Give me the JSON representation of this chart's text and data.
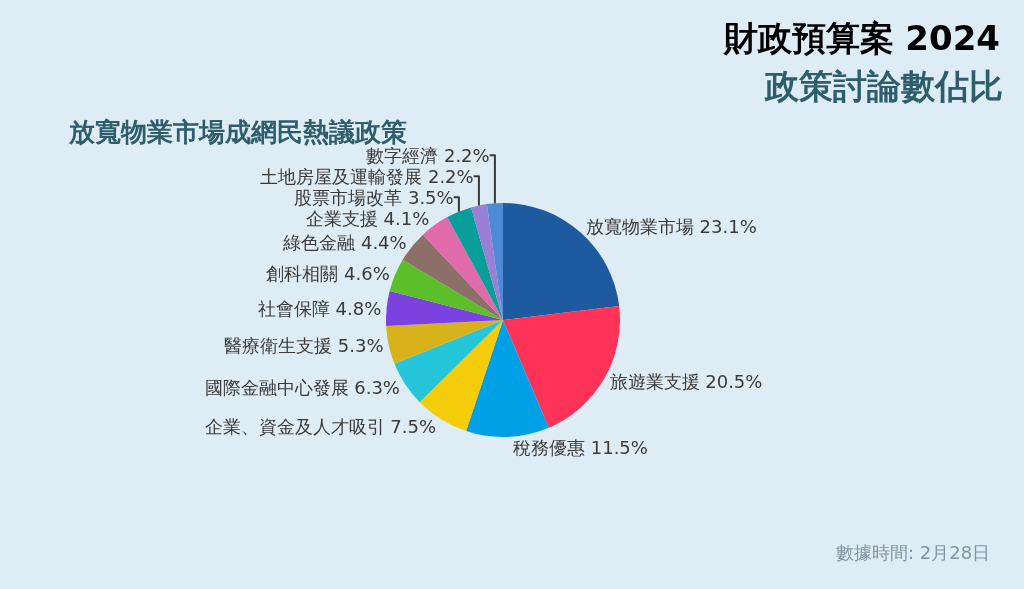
{
  "chart_data": {
    "type": "pie",
    "title": "財政預算案 2024",
    "subtitle": "政策討論數佔比",
    "annotations": [
      "放寬物業市場成網民熱議政策",
      "數據時間: 2月28日"
    ],
    "categories": [
      "放寬物業市場",
      "旅遊業支援",
      "稅務優惠",
      "企業、資金及人才吸引",
      "國際金融中心發展",
      "醫療衛生支援",
      "社會保障",
      "創科相關",
      "綠色金融",
      "企業支援",
      "股票市場改革",
      "土地房屋及運輸發展",
      "數字經濟"
    ],
    "values": [
      23.1,
      20.5,
      11.5,
      7.5,
      6.3,
      5.3,
      4.8,
      4.6,
      4.4,
      4.1,
      3.5,
      2.2,
      2.2
    ],
    "value_labels": [
      "23.1%",
      "20.5%",
      "11.5%",
      "7.5%",
      "6.3%",
      "5.3%",
      "4.8%",
      "4.6%",
      "4.4%",
      "4.1%",
      "3.5%",
      "2.2%",
      "2.2%"
    ],
    "colors": [
      "#1e5aa0",
      "#ff3358",
      "#00a0e6",
      "#f5cc0a",
      "#26c6da",
      "#d8b21a",
      "#7c42e0",
      "#5cbf2a",
      "#8c7068",
      "#e06aaa",
      "#0a9e9a",
      "#9a7fd6",
      "#4f8ad6"
    ],
    "legend": false
  }
}
